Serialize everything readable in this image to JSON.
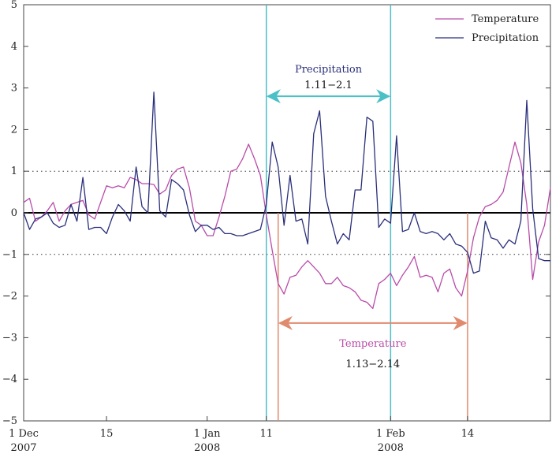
{
  "chart_data": {
    "type": "line",
    "title": "",
    "xlabel": "",
    "ylabel": "",
    "ylim": [
      -5,
      5
    ],
    "yticks": [
      -5,
      -4,
      -3,
      -2,
      -1,
      0,
      1,
      2,
      3,
      4,
      5
    ],
    "ytick_labels": [
      "−5",
      "−4",
      "−3",
      "−2",
      "−1",
      "0",
      "1",
      "2",
      "3",
      "4",
      "5"
    ],
    "xticks": [
      {
        "day": 0,
        "line1": "1  Dec",
        "line2": "2007"
      },
      {
        "day": 14,
        "line1": "15",
        "line2": ""
      },
      {
        "day": 31,
        "line1": "1  Jan",
        "line2": "2008"
      },
      {
        "day": 41,
        "line1": "11",
        "line2": ""
      },
      {
        "day": 62,
        "line1": "1  Feb",
        "line2": "2008"
      },
      {
        "day": 75,
        "line1": "14",
        "line2": ""
      }
    ],
    "reference_lines": [
      {
        "y": 1,
        "style": "dotted"
      },
      {
        "y": 0,
        "style": "solid"
      },
      {
        "y": -1,
        "style": "dotted"
      }
    ],
    "colors": {
      "temperature": "#b94ca9",
      "precipitation": "#2a2f7a",
      "precip_bracket": "#4cc0c7",
      "temp_bracket": "#e08a6e",
      "zero_line": "#000000"
    },
    "series": [
      {
        "name": "Temperature",
        "x": [
          0,
          1,
          2,
          3,
          4,
          5,
          6,
          7,
          8,
          9,
          10,
          11,
          12,
          13,
          14,
          15,
          16,
          17,
          18,
          19,
          20,
          21,
          22,
          23,
          24,
          25,
          26,
          27,
          28,
          29,
          30,
          31,
          32,
          33,
          34,
          35,
          36,
          37,
          38,
          39,
          40,
          41,
          42,
          43,
          44,
          45,
          46,
          47,
          48,
          49,
          50,
          51,
          52,
          53,
          54,
          55,
          56,
          57,
          58,
          59,
          60,
          61,
          62,
          63,
          64,
          65,
          66,
          67,
          68,
          69,
          70,
          71,
          72,
          73,
          74,
          75,
          76,
          77,
          78,
          79,
          80,
          81,
          82,
          83,
          84,
          85,
          86,
          87,
          88,
          89
        ],
        "values": [
          0.25,
          0.35,
          -0.2,
          -0.1,
          0.05,
          0.25,
          -0.2,
          0.05,
          0.2,
          0.25,
          0.3,
          -0.05,
          -0.15,
          0.25,
          0.65,
          0.6,
          0.65,
          0.6,
          0.85,
          0.8,
          0.7,
          0.7,
          0.68,
          0.45,
          0.55,
          0.9,
          1.05,
          1.1,
          0.6,
          -0.2,
          -0.3,
          -0.55,
          -0.55,
          -0.1,
          0.4,
          1.0,
          1.05,
          1.3,
          1.65,
          1.3,
          0.9,
          -0.05,
          -0.9,
          -1.7,
          -1.95,
          -1.55,
          -1.5,
          -1.3,
          -1.15,
          -1.3,
          -1.45,
          -1.7,
          -1.7,
          -1.55,
          -1.75,
          -1.8,
          -1.9,
          -2.1,
          -2.15,
          -2.3,
          -1.7,
          -1.6,
          -1.45,
          -1.75,
          -1.5,
          -1.3,
          -1.05,
          -1.55,
          -1.5,
          -1.55,
          -1.9,
          -1.45,
          -1.35,
          -1.8,
          -2.0,
          -1.4,
          -0.6,
          -0.1,
          0.15,
          0.2,
          0.3,
          0.5,
          1.1,
          1.7,
          1.2,
          0.2,
          -1.6,
          -0.7,
          -0.3,
          0.6
        ]
      },
      {
        "name": "Precipitation",
        "x": [
          0,
          1,
          2,
          3,
          4,
          5,
          6,
          7,
          8,
          9,
          10,
          11,
          12,
          13,
          14,
          15,
          16,
          17,
          18,
          19,
          20,
          21,
          22,
          23,
          24,
          25,
          26,
          27,
          28,
          29,
          30,
          31,
          32,
          33,
          34,
          35,
          36,
          37,
          38,
          39,
          40,
          41,
          42,
          43,
          44,
          45,
          46,
          47,
          48,
          49,
          50,
          51,
          52,
          53,
          54,
          55,
          56,
          57,
          58,
          59,
          60,
          61,
          62,
          63,
          64,
          65,
          66,
          67,
          68,
          69,
          70,
          71,
          72,
          73,
          74,
          75,
          76,
          77,
          78,
          79,
          80,
          81,
          82,
          83,
          84,
          85,
          86,
          87,
          88,
          89
        ],
        "values": [
          0.0,
          -0.4,
          -0.15,
          -0.1,
          0.0,
          -0.25,
          -0.35,
          -0.3,
          0.2,
          -0.2,
          0.85,
          -0.4,
          -0.35,
          -0.35,
          -0.5,
          -0.1,
          0.2,
          0.05,
          -0.2,
          1.1,
          0.15,
          0.0,
          2.9,
          0.05,
          -0.1,
          0.8,
          0.7,
          0.55,
          -0.05,
          -0.45,
          -0.3,
          -0.3,
          -0.4,
          -0.35,
          -0.5,
          -0.5,
          -0.55,
          -0.55,
          -0.5,
          -0.45,
          -0.4,
          0.2,
          1.7,
          1.1,
          -0.3,
          0.9,
          -0.2,
          -0.15,
          -0.75,
          1.9,
          2.45,
          0.4,
          -0.2,
          -0.75,
          -0.5,
          -0.65,
          0.55,
          0.55,
          2.3,
          2.2,
          -0.35,
          -0.15,
          -0.25,
          1.85,
          -0.45,
          -0.4,
          0.0,
          -0.45,
          -0.5,
          -0.45,
          -0.5,
          -0.65,
          -0.5,
          -0.75,
          -0.8,
          -0.95,
          -1.45,
          -1.4,
          -0.2,
          -0.6,
          -0.65,
          -0.85,
          -0.65,
          -0.75,
          -0.2,
          2.7,
          0.1,
          -1.1,
          -1.15,
          -1.15
        ]
      }
    ],
    "legend": {
      "placement": "top-right"
    },
    "annotations": [
      {
        "label": "Precipitation",
        "range": "1.11−2.1",
        "x_start": 41,
        "x_end": 62,
        "arrow_y": 2.8,
        "vline_color_key": "precip_bracket",
        "text_color_key": "precipitation"
      },
      {
        "label": "Temperature",
        "range": "1.13−2.14",
        "x_start": 43,
        "x_end": 75,
        "arrow_y": -2.65,
        "vline_color_key": "temp_bracket",
        "text_color_key": "temperature"
      }
    ]
  }
}
